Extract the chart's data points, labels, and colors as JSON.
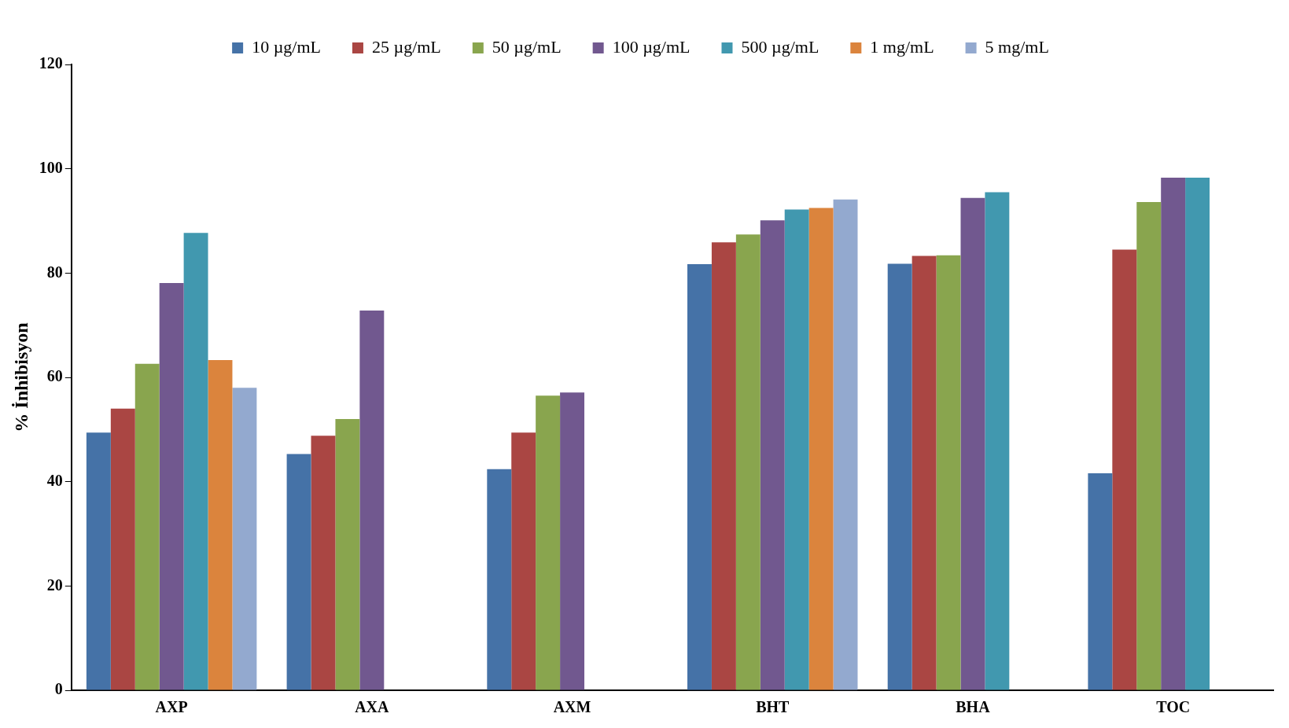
{
  "chart_data": {
    "type": "bar",
    "ylabel": "% İnhibisyon",
    "categories": [
      "AXP",
      "AXA",
      "AXM",
      "BHT",
      "BHA",
      "TOC"
    ],
    "series": [
      {
        "name": "10 µg/mL",
        "color": "#4572a7",
        "values": [
          49.4,
          45.3,
          42.4,
          81.7,
          81.8,
          41.6
        ]
      },
      {
        "name": "25 µg/mL",
        "color": "#aa4643",
        "values": [
          54.0,
          48.8,
          49.4,
          85.9,
          83.3,
          84.5
        ]
      },
      {
        "name": "50 µg/mL",
        "color": "#89a54e",
        "values": [
          62.6,
          52.0,
          56.5,
          87.4,
          83.4,
          93.6
        ]
      },
      {
        "name": "100 µg/mL",
        "color": "#71588f",
        "values": [
          78.1,
          72.8,
          57.1,
          90.1,
          94.4,
          98.3
        ]
      },
      {
        "name": "500 µg/mL",
        "color": "#4198af",
        "values": [
          87.7,
          null,
          null,
          92.2,
          95.5,
          98.3
        ]
      },
      {
        "name": "1 mg/mL",
        "color": "#db843d",
        "values": [
          63.3,
          null,
          null,
          92.5,
          null,
          null
        ]
      },
      {
        "name": "5 mg/mL",
        "color": "#93a9cf",
        "values": [
          58.0,
          null,
          null,
          94.1,
          null,
          null
        ]
      }
    ],
    "ylim": [
      0,
      120
    ],
    "yticks": [
      0,
      20,
      40,
      60,
      80,
      100,
      120
    ],
    "grid": false,
    "legend": "top"
  }
}
